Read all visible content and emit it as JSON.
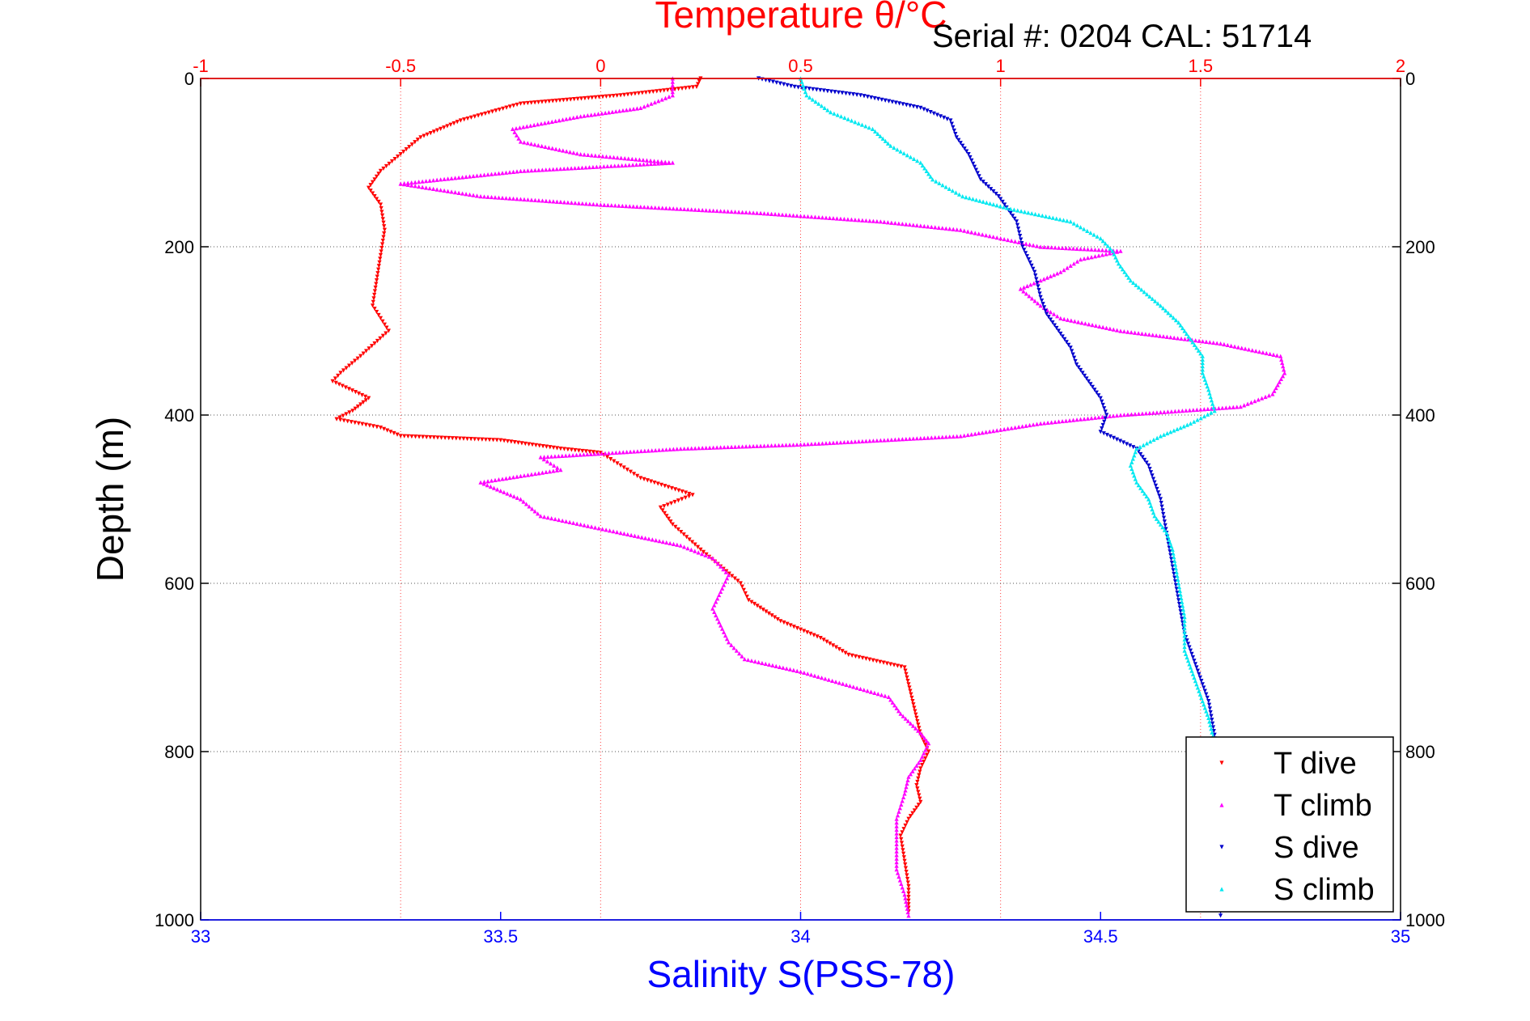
{
  "chart_data": {
    "type": "scatter",
    "title": "Temperature θ/°C",
    "annotation": "Serial #: 0204  CAL: 51714",
    "xlabel": "Salinity S(PSS-78)",
    "ylabel": "Depth (m)",
    "ylim": [
      1000,
      0
    ],
    "top_axis": {
      "label": "Temperature θ/°C",
      "range": [
        -1,
        2
      ],
      "ticks": [
        "-1",
        "-0.5",
        "0",
        "0.5",
        "1",
        "1.5",
        "2"
      ],
      "color": "#ff0000"
    },
    "bottom_axis": {
      "label": "Salinity S(PSS-78)",
      "range": [
        33,
        35
      ],
      "ticks": [
        "33",
        "33.5",
        "34",
        "34.5",
        "35"
      ],
      "color": "#0000ff"
    },
    "left_axis_ticks": [
      "0",
      "200",
      "400",
      "600",
      "800",
      "1000"
    ],
    "right_axis_ticks": [
      "0",
      "200",
      "400",
      "600",
      "800",
      "1000"
    ],
    "grid": true,
    "legend_position": "bottom-right",
    "series": [
      {
        "name": "T dive",
        "axis": "top",
        "color": "#ff0000",
        "marker": "triangle-down",
        "points": [
          [
            0.25,
            0
          ],
          [
            0.24,
            10
          ],
          [
            0.05,
            20
          ],
          [
            -0.2,
            30
          ],
          [
            -0.35,
            50
          ],
          [
            -0.45,
            70
          ],
          [
            -0.5,
            90
          ],
          [
            -0.55,
            110
          ],
          [
            -0.58,
            130
          ],
          [
            -0.55,
            150
          ],
          [
            -0.54,
            180
          ],
          [
            -0.55,
            210
          ],
          [
            -0.56,
            240
          ],
          [
            -0.57,
            270
          ],
          [
            -0.53,
            300
          ],
          [
            -0.6,
            330
          ],
          [
            -0.65,
            350
          ],
          [
            -0.67,
            360
          ],
          [
            -0.58,
            380
          ],
          [
            -0.62,
            395
          ],
          [
            -0.66,
            405
          ],
          [
            -0.55,
            415
          ],
          [
            -0.5,
            425
          ],
          [
            -0.25,
            430
          ],
          [
            -0.1,
            440
          ],
          [
            0.0,
            445
          ],
          [
            0.05,
            460
          ],
          [
            0.1,
            475
          ],
          [
            0.23,
            495
          ],
          [
            0.15,
            510
          ],
          [
            0.18,
            530
          ],
          [
            0.25,
            560
          ],
          [
            0.3,
            580
          ],
          [
            0.35,
            600
          ],
          [
            0.37,
            620
          ],
          [
            0.45,
            645
          ],
          [
            0.55,
            665
          ],
          [
            0.62,
            685
          ],
          [
            0.76,
            700
          ],
          [
            0.77,
            720
          ],
          [
            0.78,
            740
          ],
          [
            0.79,
            760
          ],
          [
            0.8,
            780
          ],
          [
            0.82,
            800
          ],
          [
            0.8,
            820
          ],
          [
            0.79,
            840
          ],
          [
            0.8,
            860
          ],
          [
            0.77,
            880
          ],
          [
            0.75,
            900
          ],
          [
            0.76,
            930
          ],
          [
            0.77,
            960
          ],
          [
            0.77,
            990
          ]
        ]
      },
      {
        "name": "T climb",
        "axis": "top",
        "color": "#ff00ff",
        "marker": "triangle-up",
        "points": [
          [
            0.18,
            0
          ],
          [
            0.18,
            20
          ],
          [
            0.1,
            35
          ],
          [
            -0.05,
            45
          ],
          [
            -0.22,
            60
          ],
          [
            -0.2,
            75
          ],
          [
            -0.05,
            90
          ],
          [
            0.18,
            100
          ],
          [
            -0.2,
            110
          ],
          [
            -0.5,
            125
          ],
          [
            -0.3,
            140
          ],
          [
            0.0,
            150
          ],
          [
            0.4,
            160
          ],
          [
            0.7,
            170
          ],
          [
            0.9,
            180
          ],
          [
            1.0,
            190
          ],
          [
            1.1,
            200
          ],
          [
            1.3,
            205
          ],
          [
            1.2,
            215
          ],
          [
            1.15,
            230
          ],
          [
            1.05,
            250
          ],
          [
            1.1,
            270
          ],
          [
            1.15,
            285
          ],
          [
            1.3,
            300
          ],
          [
            1.55,
            315
          ],
          [
            1.7,
            330
          ],
          [
            1.71,
            350
          ],
          [
            1.68,
            375
          ],
          [
            1.6,
            390
          ],
          [
            1.3,
            400
          ],
          [
            1.1,
            410
          ],
          [
            0.9,
            425
          ],
          [
            0.5,
            435
          ],
          [
            0.2,
            440
          ],
          [
            -0.15,
            450
          ],
          [
            -0.1,
            465
          ],
          [
            -0.3,
            480
          ],
          [
            -0.2,
            500
          ],
          [
            -0.15,
            520
          ],
          [
            0.05,
            540
          ],
          [
            0.2,
            555
          ],
          [
            0.28,
            570
          ],
          [
            0.32,
            590
          ],
          [
            0.3,
            610
          ],
          [
            0.28,
            630
          ],
          [
            0.3,
            650
          ],
          [
            0.32,
            670
          ],
          [
            0.36,
            690
          ],
          [
            0.5,
            705
          ],
          [
            0.72,
            735
          ],
          [
            0.75,
            755
          ],
          [
            0.8,
            778
          ],
          [
            0.82,
            790
          ],
          [
            0.8,
            810
          ],
          [
            0.77,
            830
          ],
          [
            0.76,
            850
          ],
          [
            0.74,
            880
          ],
          [
            0.74,
            910
          ],
          [
            0.74,
            940
          ],
          [
            0.76,
            970
          ],
          [
            0.77,
            995
          ]
        ]
      },
      {
        "name": "S dive",
        "axis": "bottom",
        "color": "#0000cc",
        "marker": "triangle-down",
        "points": [
          [
            33.93,
            0
          ],
          [
            33.99,
            10
          ],
          [
            34.1,
            20
          ],
          [
            34.2,
            35
          ],
          [
            34.25,
            50
          ],
          [
            34.26,
            70
          ],
          [
            34.28,
            90
          ],
          [
            34.3,
            120
          ],
          [
            34.33,
            140
          ],
          [
            34.36,
            170
          ],
          [
            34.37,
            200
          ],
          [
            34.39,
            230
          ],
          [
            34.4,
            260
          ],
          [
            34.41,
            280
          ],
          [
            34.43,
            300
          ],
          [
            34.45,
            320
          ],
          [
            34.46,
            340
          ],
          [
            34.48,
            360
          ],
          [
            34.5,
            380
          ],
          [
            34.51,
            400
          ],
          [
            34.5,
            420
          ],
          [
            34.56,
            440
          ],
          [
            34.58,
            460
          ],
          [
            34.6,
            500
          ],
          [
            34.61,
            540
          ],
          [
            34.62,
            580
          ],
          [
            34.63,
            620
          ],
          [
            34.64,
            660
          ],
          [
            34.66,
            700
          ],
          [
            34.68,
            740
          ],
          [
            34.69,
            780
          ],
          [
            34.69,
            820
          ],
          [
            34.69,
            860
          ],
          [
            34.69,
            900
          ],
          [
            34.7,
            950
          ],
          [
            34.7,
            995
          ]
        ]
      },
      {
        "name": "S climb",
        "axis": "bottom",
        "color": "#00e8f0",
        "marker": "triangle-up",
        "points": [
          [
            34.0,
            0
          ],
          [
            34.01,
            20
          ],
          [
            34.05,
            40
          ],
          [
            34.12,
            60
          ],
          [
            34.15,
            80
          ],
          [
            34.2,
            100
          ],
          [
            34.22,
            120
          ],
          [
            34.27,
            140
          ],
          [
            34.35,
            155
          ],
          [
            34.45,
            170
          ],
          [
            34.5,
            190
          ],
          [
            34.52,
            205
          ],
          [
            34.53,
            220
          ],
          [
            34.55,
            240
          ],
          [
            34.6,
            270
          ],
          [
            34.63,
            290
          ],
          [
            34.65,
            310
          ],
          [
            34.67,
            330
          ],
          [
            34.67,
            350
          ],
          [
            34.68,
            370
          ],
          [
            34.69,
            395
          ],
          [
            34.65,
            410
          ],
          [
            34.6,
            425
          ],
          [
            34.56,
            440
          ],
          [
            34.55,
            460
          ],
          [
            34.56,
            480
          ],
          [
            34.58,
            500
          ],
          [
            34.59,
            520
          ],
          [
            34.61,
            540
          ],
          [
            34.62,
            560
          ],
          [
            34.63,
            600
          ],
          [
            34.64,
            640
          ],
          [
            34.64,
            680
          ],
          [
            34.66,
            720
          ],
          [
            34.68,
            760
          ],
          [
            34.69,
            790
          ]
        ]
      }
    ]
  }
}
